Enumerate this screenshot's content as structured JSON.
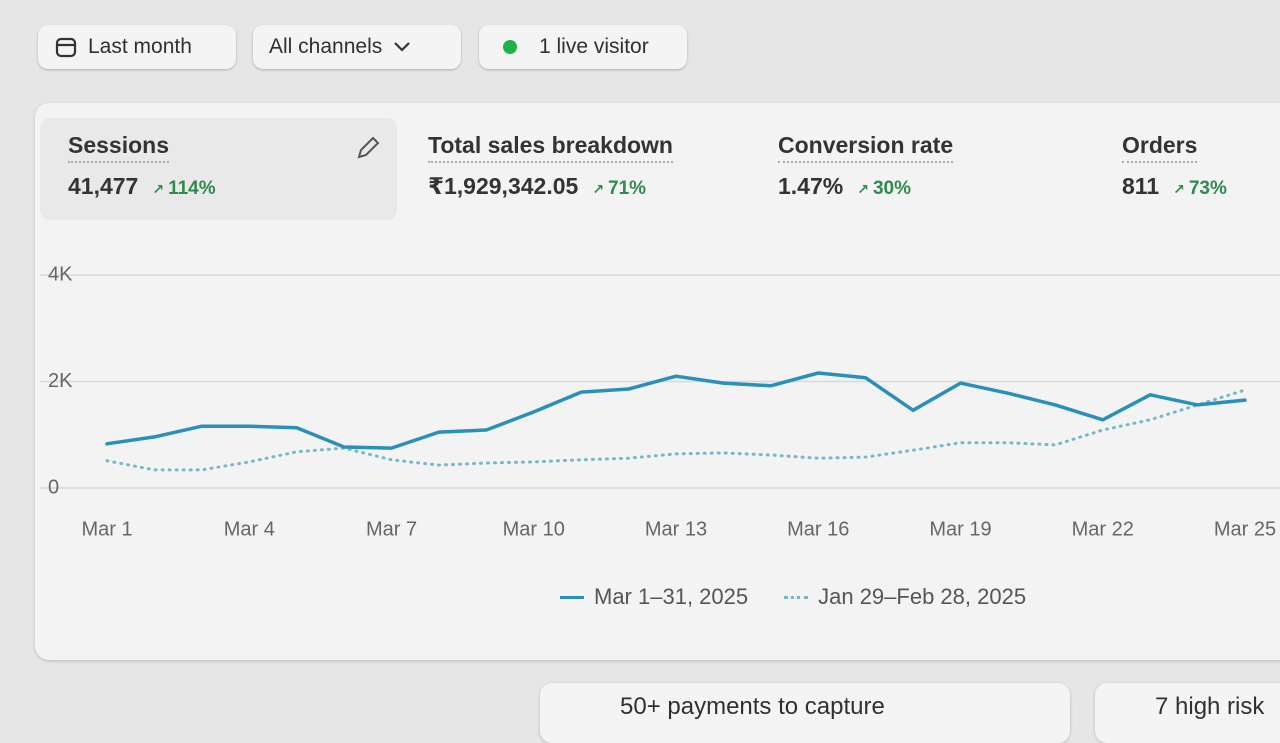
{
  "toolbar": {
    "date": "Last month",
    "channels": "All channels",
    "visitors": "1 live visitor"
  },
  "metrics": [
    {
      "label": "Sessions",
      "value": "41,477",
      "change": "114%"
    },
    {
      "label": "Total sales breakdown",
      "value": "₹1,929,342.05",
      "change": "71%"
    },
    {
      "label": "Conversion rate",
      "value": "1.47%",
      "change": "30%"
    },
    {
      "label": "Orders",
      "value": "811",
      "change": "73%"
    }
  ],
  "chart_data": {
    "type": "line",
    "categories": [
      "Mar 1",
      null,
      null,
      "Mar 4",
      null,
      null,
      "Mar 7",
      null,
      null,
      "Mar 10",
      null,
      null,
      "Mar 13",
      null,
      null,
      "Mar 16",
      null,
      null,
      "Mar 19",
      null,
      null,
      "Mar 22",
      null,
      null,
      "Mar 25"
    ],
    "series": [
      {
        "name": "Mar 1–31, 2025",
        "color": "#2a8fba",
        "style": "solid",
        "values": [
          830,
          960,
          1160,
          1160,
          1130,
          770,
          750,
          1050,
          1090,
          1430,
          1800,
          1860,
          2100,
          1970,
          1920,
          2160,
          2070,
          1460,
          1970,
          1780,
          1560,
          1280,
          1750,
          1560,
          1650
        ]
      },
      {
        "name": "Jan 29–Feb 28, 2025",
        "color": "#74b8c9",
        "style": "dotted",
        "values": [
          510,
          340,
          340,
          490,
          680,
          750,
          530,
          430,
          470,
          490,
          530,
          560,
          640,
          660,
          620,
          560,
          580,
          710,
          850,
          850,
          810,
          1090,
          1280,
          1560,
          1840
        ]
      }
    ],
    "ylim": [
      0,
      4000
    ],
    "yticks": [
      0,
      {
        "value": 2000,
        "label": "2K"
      },
      {
        "value": 4000,
        "label": "4K"
      }
    ],
    "grid": true
  },
  "alerts": [
    "50+ payments to capture",
    "7 high risk"
  ]
}
